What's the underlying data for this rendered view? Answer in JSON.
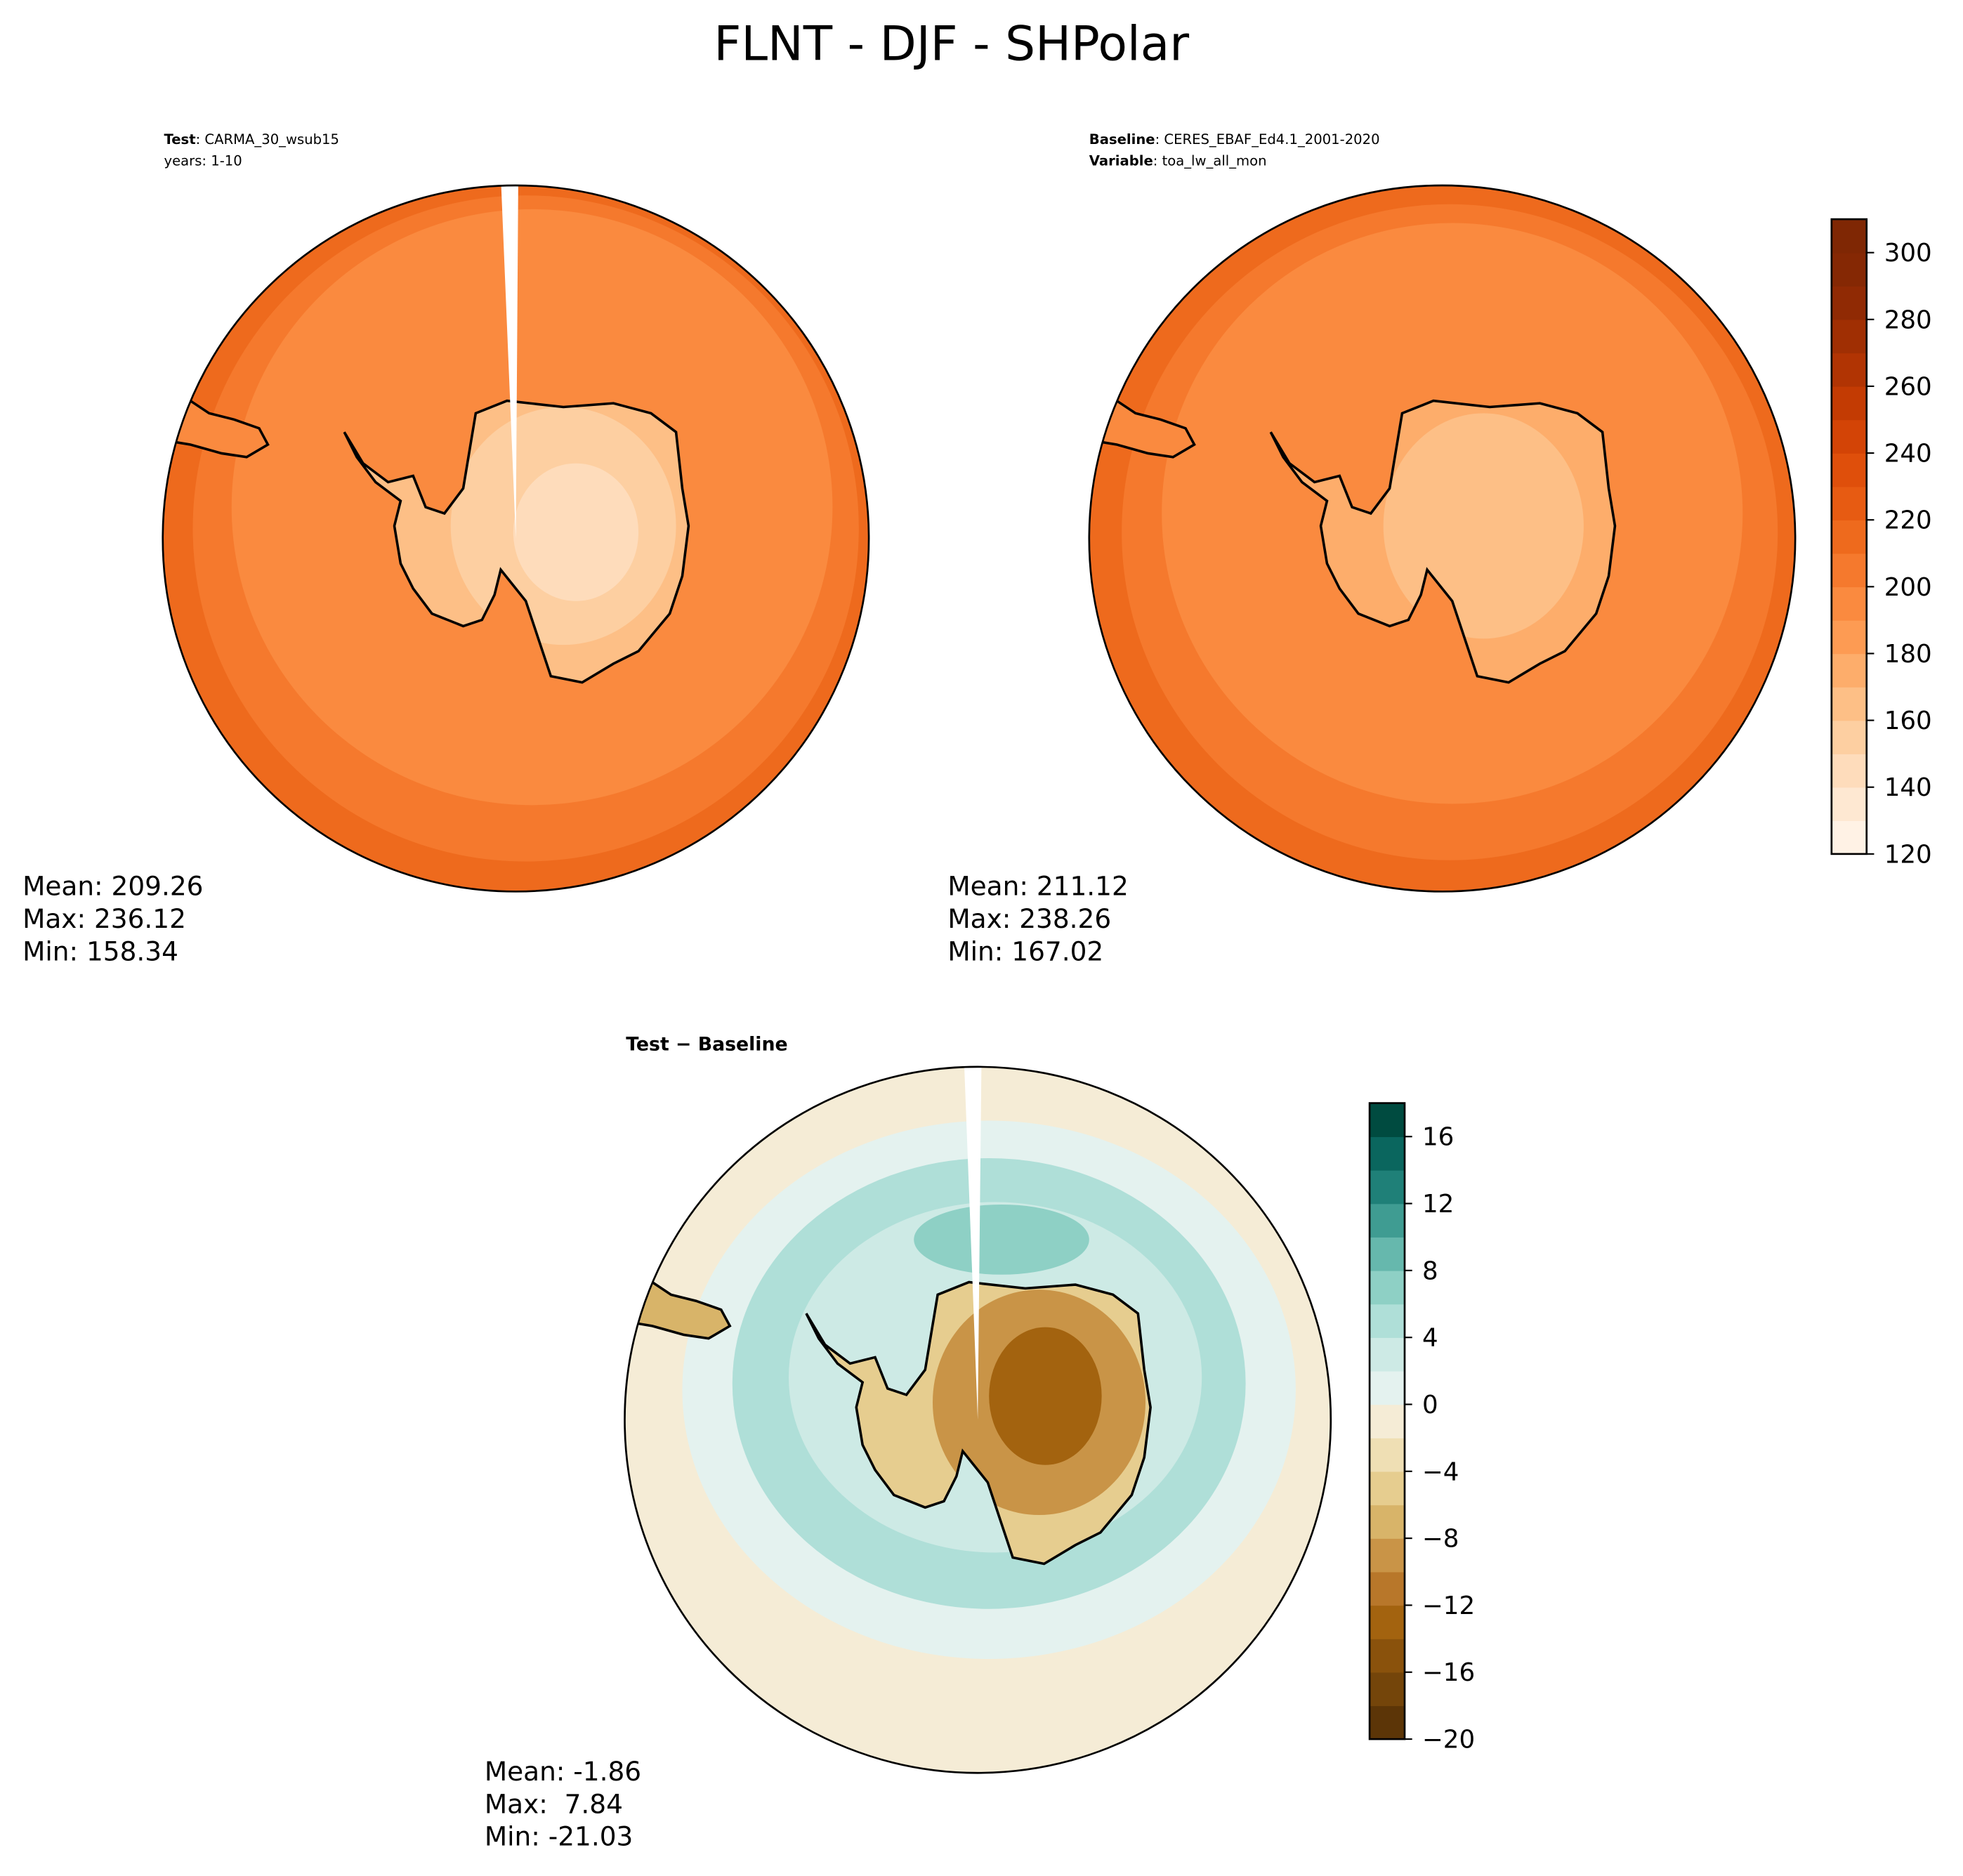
{
  "title": "FLNT - DJF - SHPolar",
  "chart_data": [
    {
      "type": "map",
      "header": [
        {
          "bold": "Test",
          "text": ": CARMA_30_wsub15"
        },
        {
          "text": "years: 1-10"
        }
      ],
      "stats": [
        "Mean: 209.26",
        "Max: 236.12",
        "Min: 158.34"
      ]
    },
    {
      "type": "map",
      "header": [
        {
          "bold": "Baseline",
          "text": ": CERES_EBAF_Ed4.1_2001-2020"
        },
        {
          "bold": "Variable",
          "text": ": toa_lw_all_mon"
        }
      ],
      "stats": [
        "Mean: 211.12",
        "Max: 238.26",
        "Min: 167.02"
      ],
      "colorbar": {
        "lim": [
          120,
          310
        ],
        "ticks": [
          120,
          140,
          160,
          180,
          200,
          220,
          240,
          260,
          280,
          300
        ],
        "colors": [
          "#fff2e5",
          "#fee8d2",
          "#fedcbb",
          "#fdcfa1",
          "#fdbf86",
          "#fdad6b",
          "#fd9b53",
          "#fa8a3f",
          "#f5792d",
          "#ee6a1d",
          "#e75b12",
          "#df4f0b",
          "#d34406",
          "#c33b03",
          "#b13403",
          "#a02f03",
          "#902a04",
          "#852804",
          "#7f2704"
        ]
      }
    },
    {
      "type": "map",
      "header": [
        {
          "bold": "Test − Baseline"
        }
      ],
      "stats": [
        "Mean: -1.86",
        "Max:  7.84",
        "Min: -21.03"
      ],
      "colorbar": {
        "lim": [
          -20,
          18
        ],
        "ticks": [
          {
            "value": -20,
            "label": "−20"
          },
          {
            "value": -16,
            "label": "−16"
          },
          {
            "value": -12,
            "label": "−12"
          },
          {
            "value": -8,
            "label": "−8"
          },
          {
            "value": -4,
            "label": "−4"
          },
          0,
          4,
          8,
          12,
          16
        ],
        "colors": [
          "#5c3507",
          "#74450a",
          "#8a520c",
          "#a3630f",
          "#b8772a",
          "#c99447",
          "#d8b469",
          "#e6cd8f",
          "#efdfb4",
          "#f5ecd6",
          "#e4f2ef",
          "#cdeae5",
          "#afdfd8",
          "#8ed0c5",
          "#66b8ad",
          "#3f9c92",
          "#1f8078",
          "#0a665e",
          "#004b40"
        ]
      }
    }
  ]
}
